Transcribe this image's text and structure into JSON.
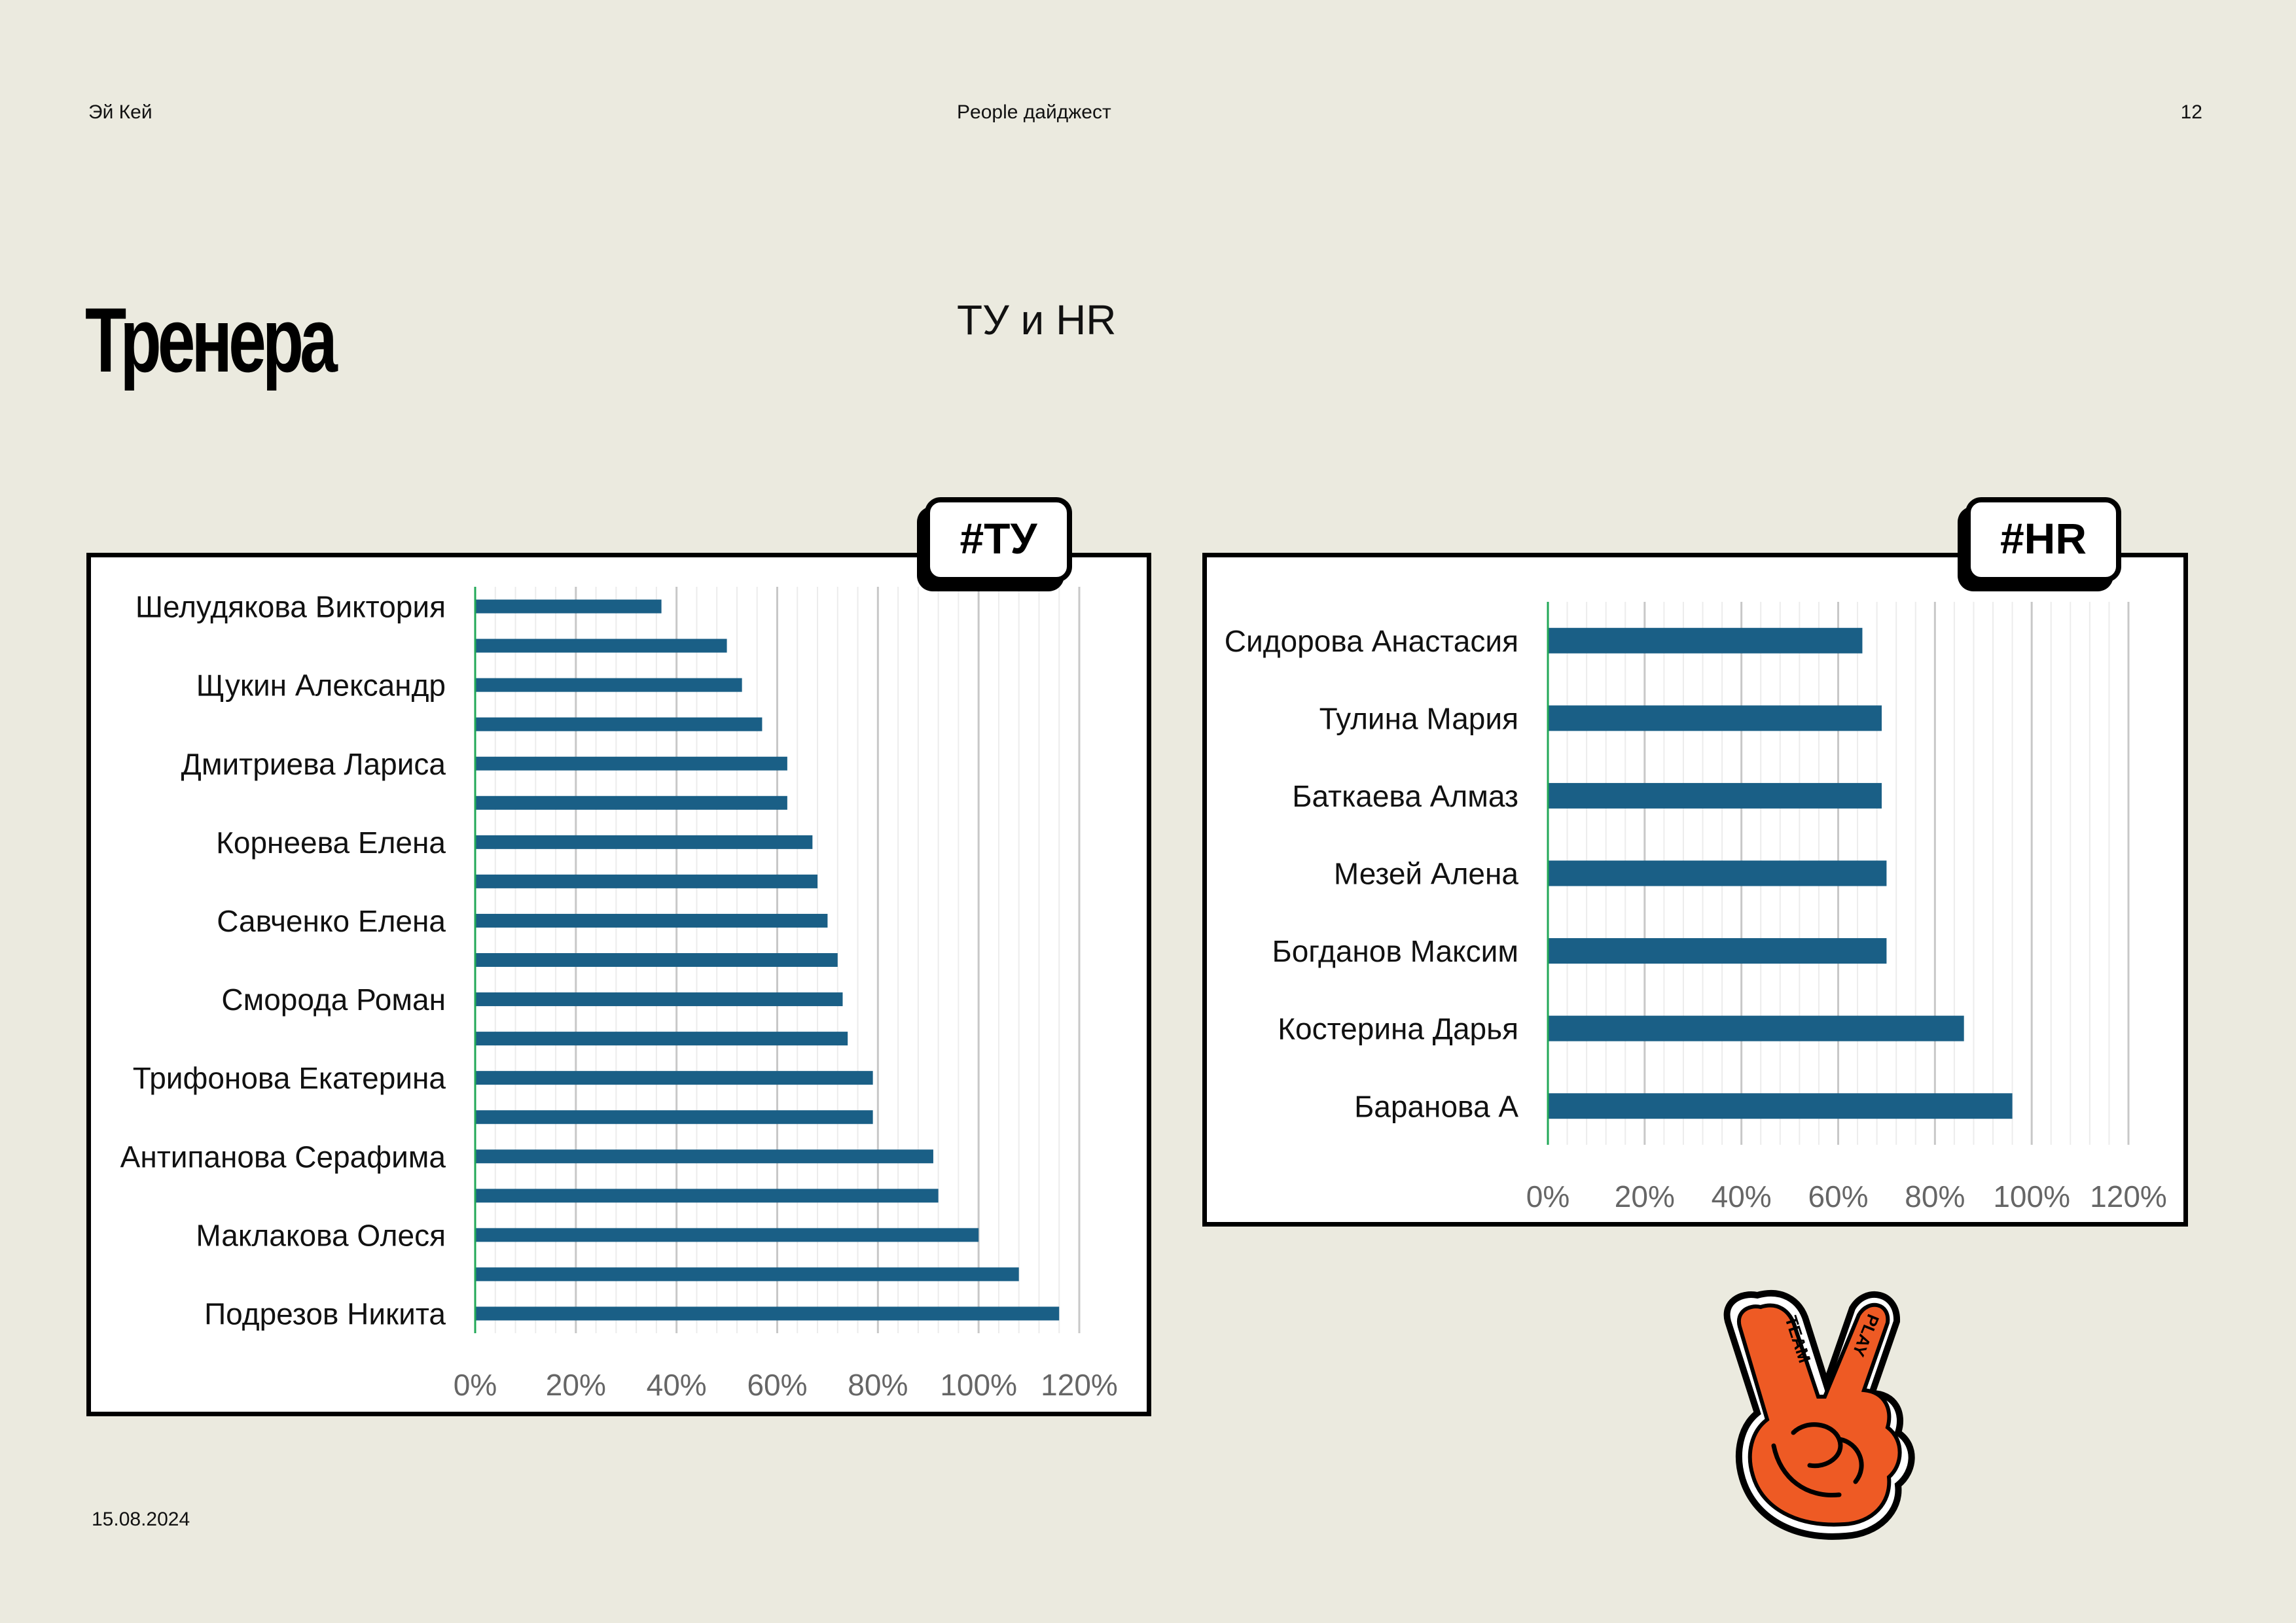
{
  "header": {
    "brand": "Эй Кей",
    "publication": "People дайджест",
    "page_number": "12"
  },
  "page_title": "Тренера",
  "subtitle": "ТУ и HR",
  "date": "15.08.2024",
  "sticker": {
    "text_1": "TEAM",
    "text_2": "PLAY"
  },
  "colors": {
    "background": "#ebeadf",
    "bar": "#1a5f86",
    "axis_line": "#22a857",
    "grid": "#d9d9d9",
    "sticker": "#ee5a24"
  },
  "chart_data": [
    {
      "id": "tu",
      "tag": "#ТУ",
      "type": "bar",
      "orientation": "horizontal",
      "categories": [
        "Шелудякова Виктория",
        "",
        "Щукин Александр",
        "",
        "Дмитриева Лариса",
        "",
        "Корнеева Елена",
        "",
        "Савченко Елена",
        "",
        "Сморода Роман",
        "",
        "Трифонова Екатерина",
        "",
        "Антипанова Серафима",
        "",
        "Маклакова Олеся",
        "",
        "Подрезов Никита"
      ],
      "values": [
        37,
        50,
        53,
        57,
        62,
        62,
        67,
        68,
        70,
        72,
        73,
        74,
        79,
        79,
        91,
        92,
        100,
        108,
        116
      ],
      "xlim": [
        0,
        120
      ],
      "xticks": [
        "0%",
        "20%",
        "40%",
        "60%",
        "80%",
        "100%",
        "120%"
      ],
      "grid": true
    },
    {
      "id": "hr",
      "tag": "#HR",
      "type": "bar",
      "orientation": "horizontal",
      "categories": [
        "Сидорова Анастасия",
        "Тулина Мария",
        "Баткаева Алмаз",
        "Мезей Алена",
        "Богданов Максим",
        "Костерина Дарья",
        "Баранова А"
      ],
      "values": [
        65,
        69,
        69,
        70,
        70,
        86,
        96
      ],
      "xlim": [
        0,
        120
      ],
      "xticks": [
        "0%",
        "20%",
        "40%",
        "60%",
        "80%",
        "100%",
        "120%"
      ],
      "grid": true
    }
  ]
}
